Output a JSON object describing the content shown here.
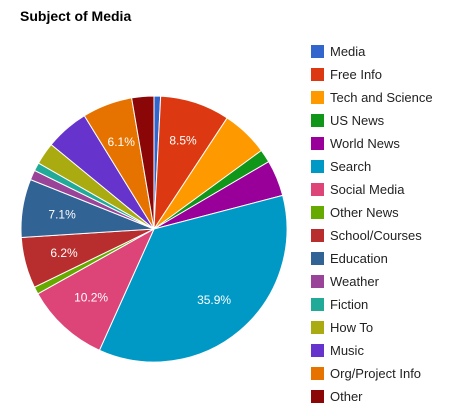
{
  "chart_data": {
    "type": "pie",
    "title": "Subject of Media",
    "legend_position": "right",
    "slices": [
      {
        "label": "Media",
        "value": 0.8,
        "color": "#3366cc",
        "display": ""
      },
      {
        "label": "Free Info",
        "value": 8.5,
        "color": "#dc3912",
        "display": "8.5%"
      },
      {
        "label": "Tech and Science",
        "value": 5.7,
        "color": "#ff9900",
        "display": ""
      },
      {
        "label": "US News",
        "value": 1.6,
        "color": "#109618",
        "display": ""
      },
      {
        "label": "World News",
        "value": 4.4,
        "color": "#990099",
        "display": ""
      },
      {
        "label": "Search",
        "value": 35.9,
        "color": "#0099c6",
        "display": "35.9%"
      },
      {
        "label": "Social Media",
        "value": 10.2,
        "color": "#dd4477",
        "display": "10.2%"
      },
      {
        "label": "Other News",
        "value": 0.9,
        "color": "#66aa00",
        "display": ""
      },
      {
        "label": "School/Courses",
        "value": 6.2,
        "color": "#b82e2e",
        "display": "6.2%"
      },
      {
        "label": "Education",
        "value": 7.1,
        "color": "#316395",
        "display": "7.1%"
      },
      {
        "label": "Weather",
        "value": 1.2,
        "color": "#994499",
        "display": ""
      },
      {
        "label": "Fiction",
        "value": 1.0,
        "color": "#22aa99",
        "display": ""
      },
      {
        "label": "How To",
        "value": 2.7,
        "color": "#aaaa11",
        "display": ""
      },
      {
        "label": "Music",
        "value": 5.3,
        "color": "#6633cc",
        "display": ""
      },
      {
        "label": "Org/Project Info",
        "value": 6.1,
        "color": "#e67300",
        "display": "6.1%"
      },
      {
        "label": "Other",
        "value": 2.7,
        "color": "#8b0707",
        "display": ""
      }
    ]
  }
}
